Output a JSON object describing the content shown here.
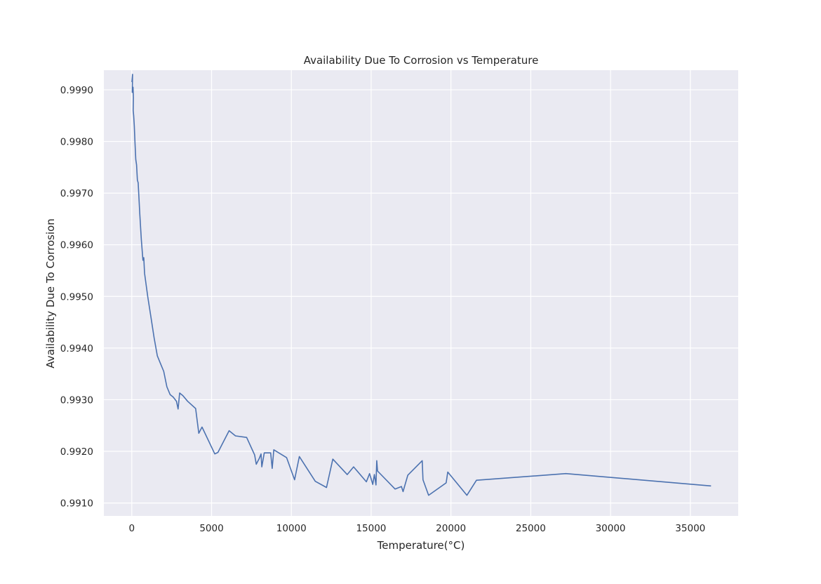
{
  "chart_data": {
    "type": "line",
    "title": "Availability Due To Corrosion vs Temperature",
    "xlabel": "Temperature(°C)",
    "ylabel": "Availability Due To Corrosion",
    "xlim": [
      -1750,
      38000
    ],
    "ylim": [
      0.99075,
      0.99938
    ],
    "x_ticks": [
      0,
      5000,
      10000,
      15000,
      20000,
      25000,
      30000,
      35000
    ],
    "x_tick_labels": [
      "0",
      "5000",
      "10000",
      "15000",
      "20000",
      "25000",
      "30000",
      "35000"
    ],
    "y_ticks": [
      0.991,
      0.992,
      0.993,
      0.994,
      0.995,
      0.996,
      0.997,
      0.998,
      0.999
    ],
    "y_tick_labels": [
      "0.9910",
      "0.9920",
      "0.9930",
      "0.9940",
      "0.9950",
      "0.9960",
      "0.9970",
      "0.9980",
      "0.9990"
    ],
    "grid": true,
    "colors": {
      "line": "#4c72b0",
      "plot_bg": "#eaeaf2",
      "grid": "#ffffff",
      "text": "#262626"
    },
    "series": [
      {
        "x": [
          10,
          50,
          30,
          80,
          100,
          90,
          120,
          160,
          200,
          250,
          300,
          350,
          400,
          500,
          600,
          700,
          750,
          800,
          1000,
          1200,
          1400,
          1600,
          1800,
          2000,
          2200,
          2400,
          2600,
          2800,
          2900,
          3000,
          3200,
          3500,
          4000,
          4200,
          4400,
          5200,
          5400,
          6100,
          6500,
          7200,
          7700,
          7800,
          8000,
          8100,
          8150,
          8300,
          8700,
          8800,
          8900,
          9700,
          10200,
          10500,
          11500,
          12200,
          12600,
          13500,
          13900,
          14700,
          14900,
          15100,
          15200,
          15300,
          15350,
          15400,
          16500,
          16900,
          17000,
          17300,
          18200,
          18250,
          18600,
          19700,
          19800,
          21000,
          21600,
          27200,
          36300
        ],
        "y": [
          0.99915,
          0.9993,
          0.99895,
          0.99905,
          0.99885,
          0.9986,
          0.9985,
          0.9983,
          0.998,
          0.99765,
          0.99755,
          0.99725,
          0.9972,
          0.9966,
          0.9961,
          0.9957,
          0.99575,
          0.99545,
          0.995,
          0.9946,
          0.9942,
          0.99385,
          0.9937,
          0.99355,
          0.99325,
          0.9931,
          0.99305,
          0.99297,
          0.99282,
          0.99313,
          0.99308,
          0.99297,
          0.99283,
          0.99235,
          0.99247,
          0.99195,
          0.99198,
          0.9924,
          0.9923,
          0.99227,
          0.99193,
          0.99175,
          0.99187,
          0.99195,
          0.9917,
          0.99197,
          0.99197,
          0.99167,
          0.99203,
          0.99188,
          0.99145,
          0.9919,
          0.99142,
          0.9913,
          0.99185,
          0.99155,
          0.9917,
          0.99141,
          0.99157,
          0.99136,
          0.99155,
          0.99135,
          0.99182,
          0.99162,
          0.99127,
          0.99132,
          0.99122,
          0.99154,
          0.99182,
          0.99145,
          0.99115,
          0.99139,
          0.9916,
          0.99115,
          0.99144,
          0.99157,
          0.99133
        ]
      }
    ]
  }
}
